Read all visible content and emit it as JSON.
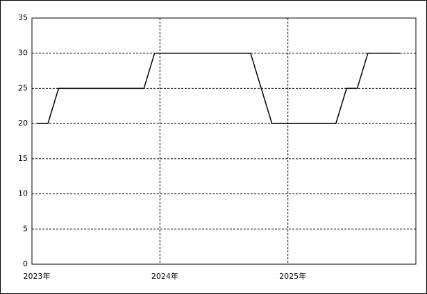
{
  "chart_data": {
    "type": "line",
    "x": [
      0.5,
      1.5,
      2.5,
      3.5,
      4.5,
      5.5,
      6.5,
      7.5,
      8.5,
      9.5,
      10.5,
      11.5,
      12.5,
      13.5,
      14.5,
      15.5,
      16.5,
      17.5,
      18.5,
      19.5,
      20.5,
      21.5,
      22.5,
      23.5,
      24.5,
      25.5,
      26.5,
      27.5,
      28.5,
      29.5,
      30.5,
      31.5,
      32.5,
      33.5,
      34.5
    ],
    "series": [
      {
        "color": "#000000",
        "values": [
          20,
          20,
          25,
          25,
          25,
          25,
          25,
          25,
          25,
          25,
          25,
          30,
          30,
          30,
          30,
          30,
          30,
          30,
          30,
          30,
          30,
          25,
          20,
          20,
          20,
          20,
          20,
          20,
          20,
          25,
          25,
          30,
          30,
          30,
          30
        ]
      }
    ],
    "xlim": [
      0,
      36
    ],
    "xticks": [
      {
        "value": 0,
        "label": "2023年"
      },
      {
        "value": 12,
        "label": "2024年"
      },
      {
        "value": 24,
        "label": "2025年"
      }
    ],
    "ylim": [
      0,
      35
    ],
    "yticks": [
      0,
      5,
      10,
      15,
      20,
      25,
      30,
      35
    ],
    "grid": true
  }
}
